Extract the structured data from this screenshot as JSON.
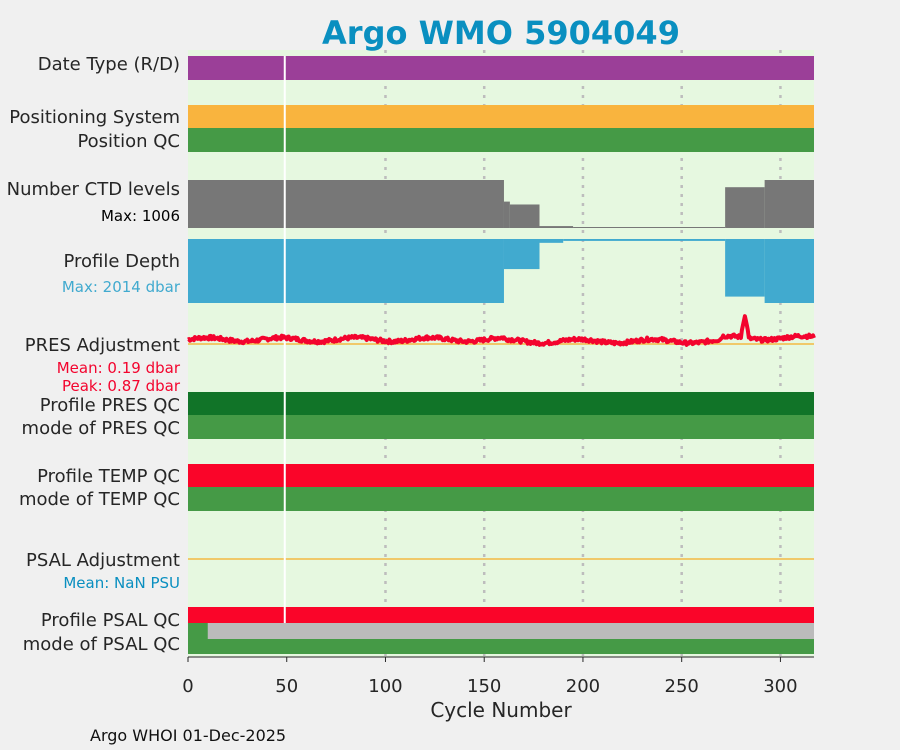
{
  "title": "Argo WMO 5904049",
  "footer": "Argo WHOI 01-Dec-2025",
  "colors": {
    "title": "#0a8fc0",
    "panel_bg": "#e6f8e0",
    "date_type": "#9b3f98",
    "positioning": "#f9b43e",
    "qc_good": "#459a46",
    "qc_dark": "#117428",
    "ctd": "#777777",
    "depth": "#41aacf",
    "pres": "#f3042e",
    "temp": "#fa0529",
    "psal_mode_gray": "#bbbbbb",
    "adj_line": "#f4b942"
  },
  "chart_data": {
    "type": "multi-panel status chart",
    "title": "Argo WMO 5904049",
    "xlabel": "Cycle Number",
    "xlim": [
      0,
      317
    ],
    "xticks": [
      0,
      50,
      100,
      150,
      200,
      250,
      300
    ],
    "grid": true,
    "marker_cycle": 49,
    "rows": [
      {
        "label": "Date Type (R/D)",
        "color": "#9b3f98"
      },
      {
        "label": "Positioning System",
        "color": "#f9b43e"
      },
      {
        "label": "Position QC",
        "color": "#459a46"
      },
      {
        "label": "Number CTD levels",
        "sub": "Max: 1006",
        "max": 1006,
        "segments": [
          {
            "from": 0,
            "to": 160,
            "fraction": 1.0
          },
          {
            "from": 160,
            "to": 163,
            "fraction": 0.55
          },
          {
            "from": 163,
            "to": 178,
            "fraction": 0.49
          },
          {
            "from": 178,
            "to": 195,
            "fraction": 0.04
          },
          {
            "from": 195,
            "to": 272,
            "fraction": 0.01
          },
          {
            "from": 272,
            "to": 292,
            "fraction": 0.85
          },
          {
            "from": 292,
            "to": 317,
            "fraction": 1.0
          }
        ]
      },
      {
        "label": "Profile Depth",
        "sub": "Max: 2014 dbar",
        "max": 2014,
        "segments": [
          {
            "from": 0,
            "to": 160,
            "fraction": 1.0
          },
          {
            "from": 160,
            "to": 178,
            "fraction": 0.47
          },
          {
            "from": 178,
            "to": 190,
            "fraction": 0.06
          },
          {
            "from": 190,
            "to": 272,
            "fraction": 0.03
          },
          {
            "from": 272,
            "to": 292,
            "fraction": 0.9
          },
          {
            "from": 292,
            "to": 317,
            "fraction": 1.0
          }
        ]
      },
      {
        "label": "PRES Adjustment",
        "sub": "Mean: 0.19 dbar",
        "sub2": "Peak: 0.87 dbar",
        "mean": 0.19,
        "peak": 0.87,
        "peak_cycle": 282
      },
      {
        "label": "Profile PRES QC",
        "color": "#117428"
      },
      {
        "label": "mode of PRES QC",
        "color": "#459a46"
      },
      {
        "label": "Profile TEMP QC",
        "color": "#fa0529"
      },
      {
        "label": "mode of TEMP QC",
        "color": "#459a46"
      },
      {
        "label": "PSAL Adjustment",
        "sub": "Mean:  NaN PSU"
      },
      {
        "label": "Profile PSAL QC",
        "color": "#fa0529"
      },
      {
        "label": "mode of PSAL QC",
        "color": "#459a46",
        "gray_from": 10
      }
    ]
  }
}
